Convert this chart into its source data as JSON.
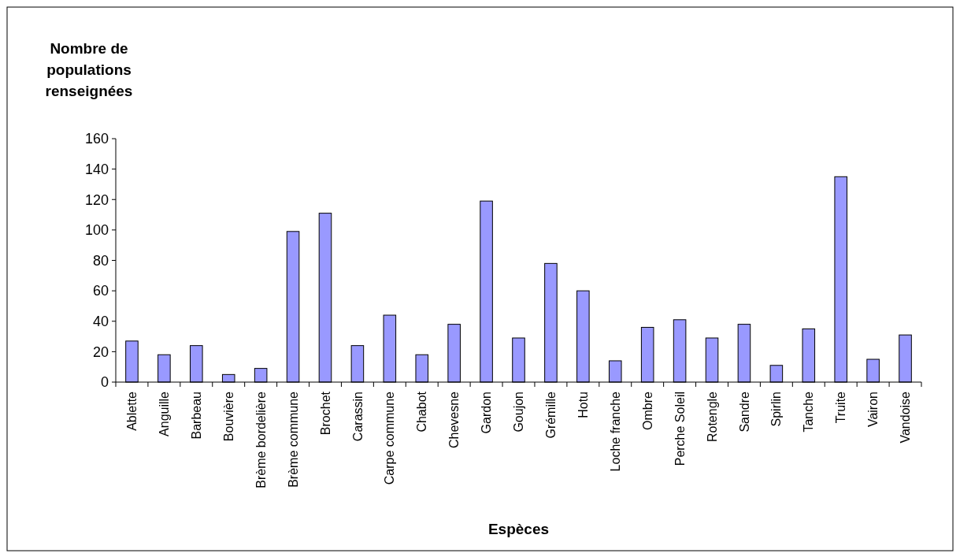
{
  "chart_data": {
    "type": "bar",
    "ylabel": "Nombre de populations renseignées",
    "xlabel": "Espèces",
    "categories": [
      "Ablette",
      "Anguille",
      "Barbeau",
      "Bouvière",
      "Brème bordelière",
      "Brème commune",
      "Brochet",
      "Carassin",
      "Carpe commune",
      "Chabot",
      "Chevesne",
      "Gardon",
      "Goujon",
      "Grémille",
      "Hotu",
      "Loche franche",
      "Ombre",
      "Perche Soleil",
      "Rotengle",
      "Sandre",
      "Spirlin",
      "Tanche",
      "Truite",
      "Vairon",
      "Vandoise"
    ],
    "values": [
      27,
      18,
      24,
      5,
      9,
      99,
      111,
      24,
      44,
      18,
      38,
      119,
      29,
      78,
      60,
      14,
      36,
      41,
      29,
      38,
      11,
      35,
      135,
      15,
      31
    ],
    "color": "#9999ff",
    "ylim": [
      0,
      160
    ],
    "yticks": [
      0,
      20,
      40,
      60,
      80,
      100,
      120,
      140,
      160
    ],
    "grid": false
  }
}
